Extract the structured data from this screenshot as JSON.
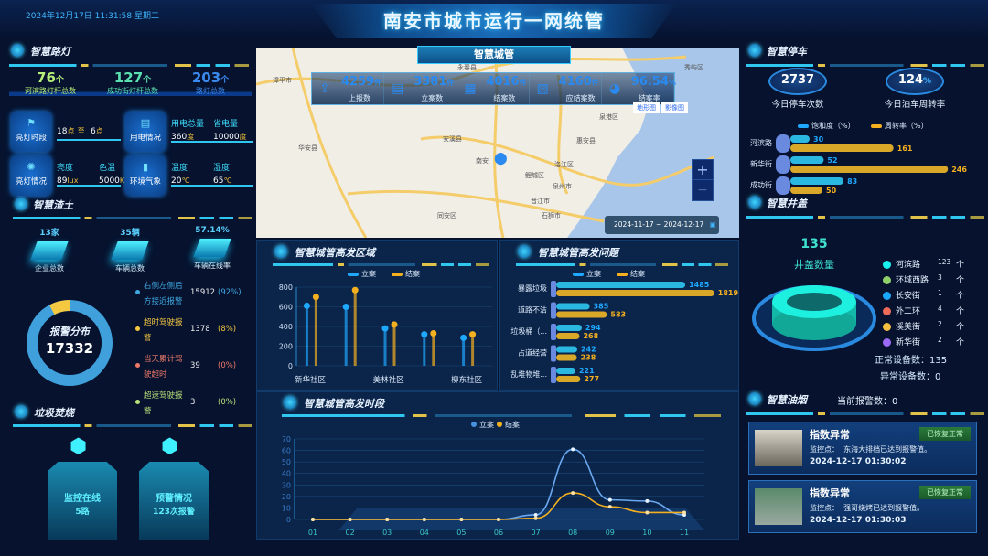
{
  "header": {
    "title": "南安市城市运行一网统管",
    "datetime": "2024年12月17日 11:31:58 星期二"
  },
  "colors": {
    "blue": "#1fa8ff",
    "orange": "#f5b020",
    "cyan": "#2fe0e8",
    "bg": "#06122e"
  },
  "streetlight": {
    "title": "智慧路灯",
    "stats": [
      {
        "value": "76",
        "unit": "个",
        "label": "河滨路灯杆总数"
      },
      {
        "value": "127",
        "unit": "个",
        "label": "成功街灯杆总数"
      },
      {
        "value": "203",
        "unit": "个",
        "label": "路灯总数"
      }
    ],
    "boxes": [
      {
        "icon": "lamp-icon",
        "label": "亮灯时段",
        "items": [
          {
            "value": "18",
            "unit": "点"
          },
          {
            "sep": "至"
          },
          {
            "value": "6",
            "unit": "点"
          }
        ]
      },
      {
        "icon": "meter-icon",
        "label": "用电情况",
        "k1": "用电总量",
        "v1": "360",
        "u1": "度",
        "k2": "省电量",
        "v2": "10000",
        "u2": "度"
      },
      {
        "icon": "bulb-icon",
        "label": "亮灯情况",
        "k1": "亮度",
        "v1": "89",
        "u1": "lux",
        "k2": "色温",
        "v2": "5000",
        "u2": "K"
      },
      {
        "icon": "thermometer-icon",
        "label": "环境气象",
        "k1": "温度",
        "v1": "20",
        "u1": "℃",
        "k2": "湿度",
        "v2": "65",
        "u2": "℃"
      }
    ]
  },
  "muck": {
    "title": "智慧渣土",
    "stats": [
      {
        "value": "13",
        "unit": "家",
        "label": "企业总数"
      },
      {
        "value": "35",
        "unit": "辆",
        "label": "车辆总数"
      },
      {
        "value": "57.14",
        "unit": "%",
        "label": "车辆在线率"
      }
    ],
    "donut": {
      "label": "报警分布",
      "total": "17332"
    },
    "alarms": [
      {
        "name": "右侧左侧后方接近报警",
        "count": 15912,
        "pct": "(92%)",
        "color": "#3fa8e0"
      },
      {
        "name": "超时驾驶报警",
        "count": 1378,
        "pct": "(8%)",
        "color": "#f5c842"
      },
      {
        "name": "当天累计驾驶超时",
        "count": 39,
        "pct": "(0%)",
        "color": "#f07a6a"
      },
      {
        "name": "超速驾驶报警",
        "count": 3,
        "pct": "(0%)",
        "color": "#b8e07a"
      }
    ]
  },
  "garbage": {
    "title": "垃圾焚烧",
    "items": [
      {
        "label": "监控在线",
        "value": "5路"
      },
      {
        "label": "预警情况",
        "value": "123次报警"
      }
    ]
  },
  "citymgmt": {
    "title": "智慧城管",
    "stats": [
      {
        "icon": "upload-icon",
        "value": "4259",
        "unit": "件",
        "label": "上报数"
      },
      {
        "icon": "clipboard-icon",
        "value": "3381",
        "unit": "件",
        "label": "立案数"
      },
      {
        "icon": "document-icon",
        "value": "4016",
        "unit": "件",
        "label": "结案数"
      },
      {
        "icon": "folder-icon",
        "value": "4160",
        "unit": "件",
        "label": "应结案数"
      },
      {
        "icon": "pie-icon",
        "value": "96.54",
        "unit": "%",
        "label": "结案率"
      }
    ],
    "map_buttons": [
      "地形图",
      "影像图"
    ],
    "zoom_in": "+",
    "zoom_out": "−",
    "date_start": "2024-11-17",
    "date_sep": "~",
    "date_end": "2024-12-17",
    "places": [
      "永春县",
      "漳平市",
      "华安县",
      "安溪县",
      "南安",
      "鲤城区",
      "洛江区",
      "泉州市",
      "晋江市",
      "石狮市",
      "同安区",
      "惠安县",
      "泉港区",
      "秀屿区"
    ]
  },
  "chart_data": [
    {
      "type": "bar",
      "title": "智慧城管高发区域",
      "categories": [
        "新华社区",
        "",
        "美林社区",
        "",
        "柳东社区"
      ],
      "ylim": [
        0,
        800
      ],
      "yticks": [
        0,
        200,
        400,
        600,
        800
      ],
      "legend": "top",
      "series": [
        {
          "name": "立案",
          "values": [
            610,
            600,
            380,
            320,
            285
          ]
        },
        {
          "name": "结案",
          "values": [
            700,
            770,
            420,
            330,
            320
          ]
        }
      ]
    },
    {
      "type": "bar",
      "orientation": "horizontal",
      "title": "智慧城管高发问题",
      "categories": [
        "暴露垃圾",
        "道路不洁",
        "垃圾桶（...",
        "占道经营",
        "乱堆物堆..."
      ],
      "legend": "top",
      "series": [
        {
          "name": "立案",
          "values": [
            1485,
            385,
            294,
            242,
            221
          ]
        },
        {
          "name": "结案",
          "values": [
            1819,
            583,
            268,
            238,
            277
          ]
        }
      ]
    },
    {
      "type": "line",
      "title": "智慧城管高发时段",
      "x": [
        "01",
        "02",
        "03",
        "04",
        "05",
        "06",
        "07",
        "08",
        "09",
        "10",
        "11"
      ],
      "ylim": [
        0,
        70
      ],
      "yticks": [
        0,
        10,
        20,
        30,
        40,
        50,
        60,
        70
      ],
      "legend": "top",
      "series": [
        {
          "name": "立案",
          "values": [
            0,
            0,
            0,
            0,
            0,
            0,
            4,
            61,
            17,
            16,
            4
          ]
        },
        {
          "name": "结案",
          "values": [
            0,
            0,
            0,
            0,
            0,
            0,
            1,
            23,
            11,
            6,
            6
          ]
        }
      ]
    },
    {
      "type": "bar",
      "orientation": "horizontal",
      "title": "智慧停车",
      "categories": [
        "河滨路",
        "新华街",
        "成功街"
      ],
      "legend": "top",
      "series": [
        {
          "name": "饱和度（%）",
          "values": [
            30,
            52,
            83
          ]
        },
        {
          "name": "周转率（%）",
          "values": [
            161,
            246,
            50
          ]
        }
      ]
    }
  ],
  "parking": {
    "title": "智慧停车",
    "stats": [
      {
        "value": "2737",
        "label": "今日停车次数"
      },
      {
        "value": "124",
        "unit": "%",
        "label": "今日泊车周转率"
      }
    ]
  },
  "manhole": {
    "title": "智慧井盖",
    "total": "135",
    "total_label": "井盖数量",
    "items": [
      {
        "name": "河滨路",
        "count": "123",
        "unit": "个",
        "color": "#19f0f0"
      },
      {
        "name": "环城西路",
        "count": "3",
        "unit": "个",
        "color": "#8fd06a"
      },
      {
        "name": "长安街",
        "count": "1",
        "unit": "个",
        "color": "#1aa8ff"
      },
      {
        "name": "外二环",
        "count": "4",
        "unit": "个",
        "color": "#f06a5a"
      },
      {
        "name": "溪美街",
        "count": "2",
        "unit": "个",
        "color": "#f5c040"
      },
      {
        "name": "新华街",
        "count": "2",
        "unit": "个",
        "color": "#9a6af5"
      }
    ],
    "normal": "正常设备数：135",
    "abnormal": "异常设备数：0"
  },
  "fume": {
    "title": "智慧油烟",
    "alarm_count": "当前报警数：0",
    "cards": [
      {
        "title": "指数异常",
        "badge": "已恢复正常",
        "point_label": "监控点：",
        "point": "东海大排档已达到报警值。",
        "time": "2024-12-17 01:30:02"
      },
      {
        "title": "指数异常",
        "badge": "已恢复正常",
        "point_label": "监控点：",
        "point": "强哥烧烤已达到报警值。",
        "time": "2024-12-17 01:30:03"
      }
    ]
  }
}
